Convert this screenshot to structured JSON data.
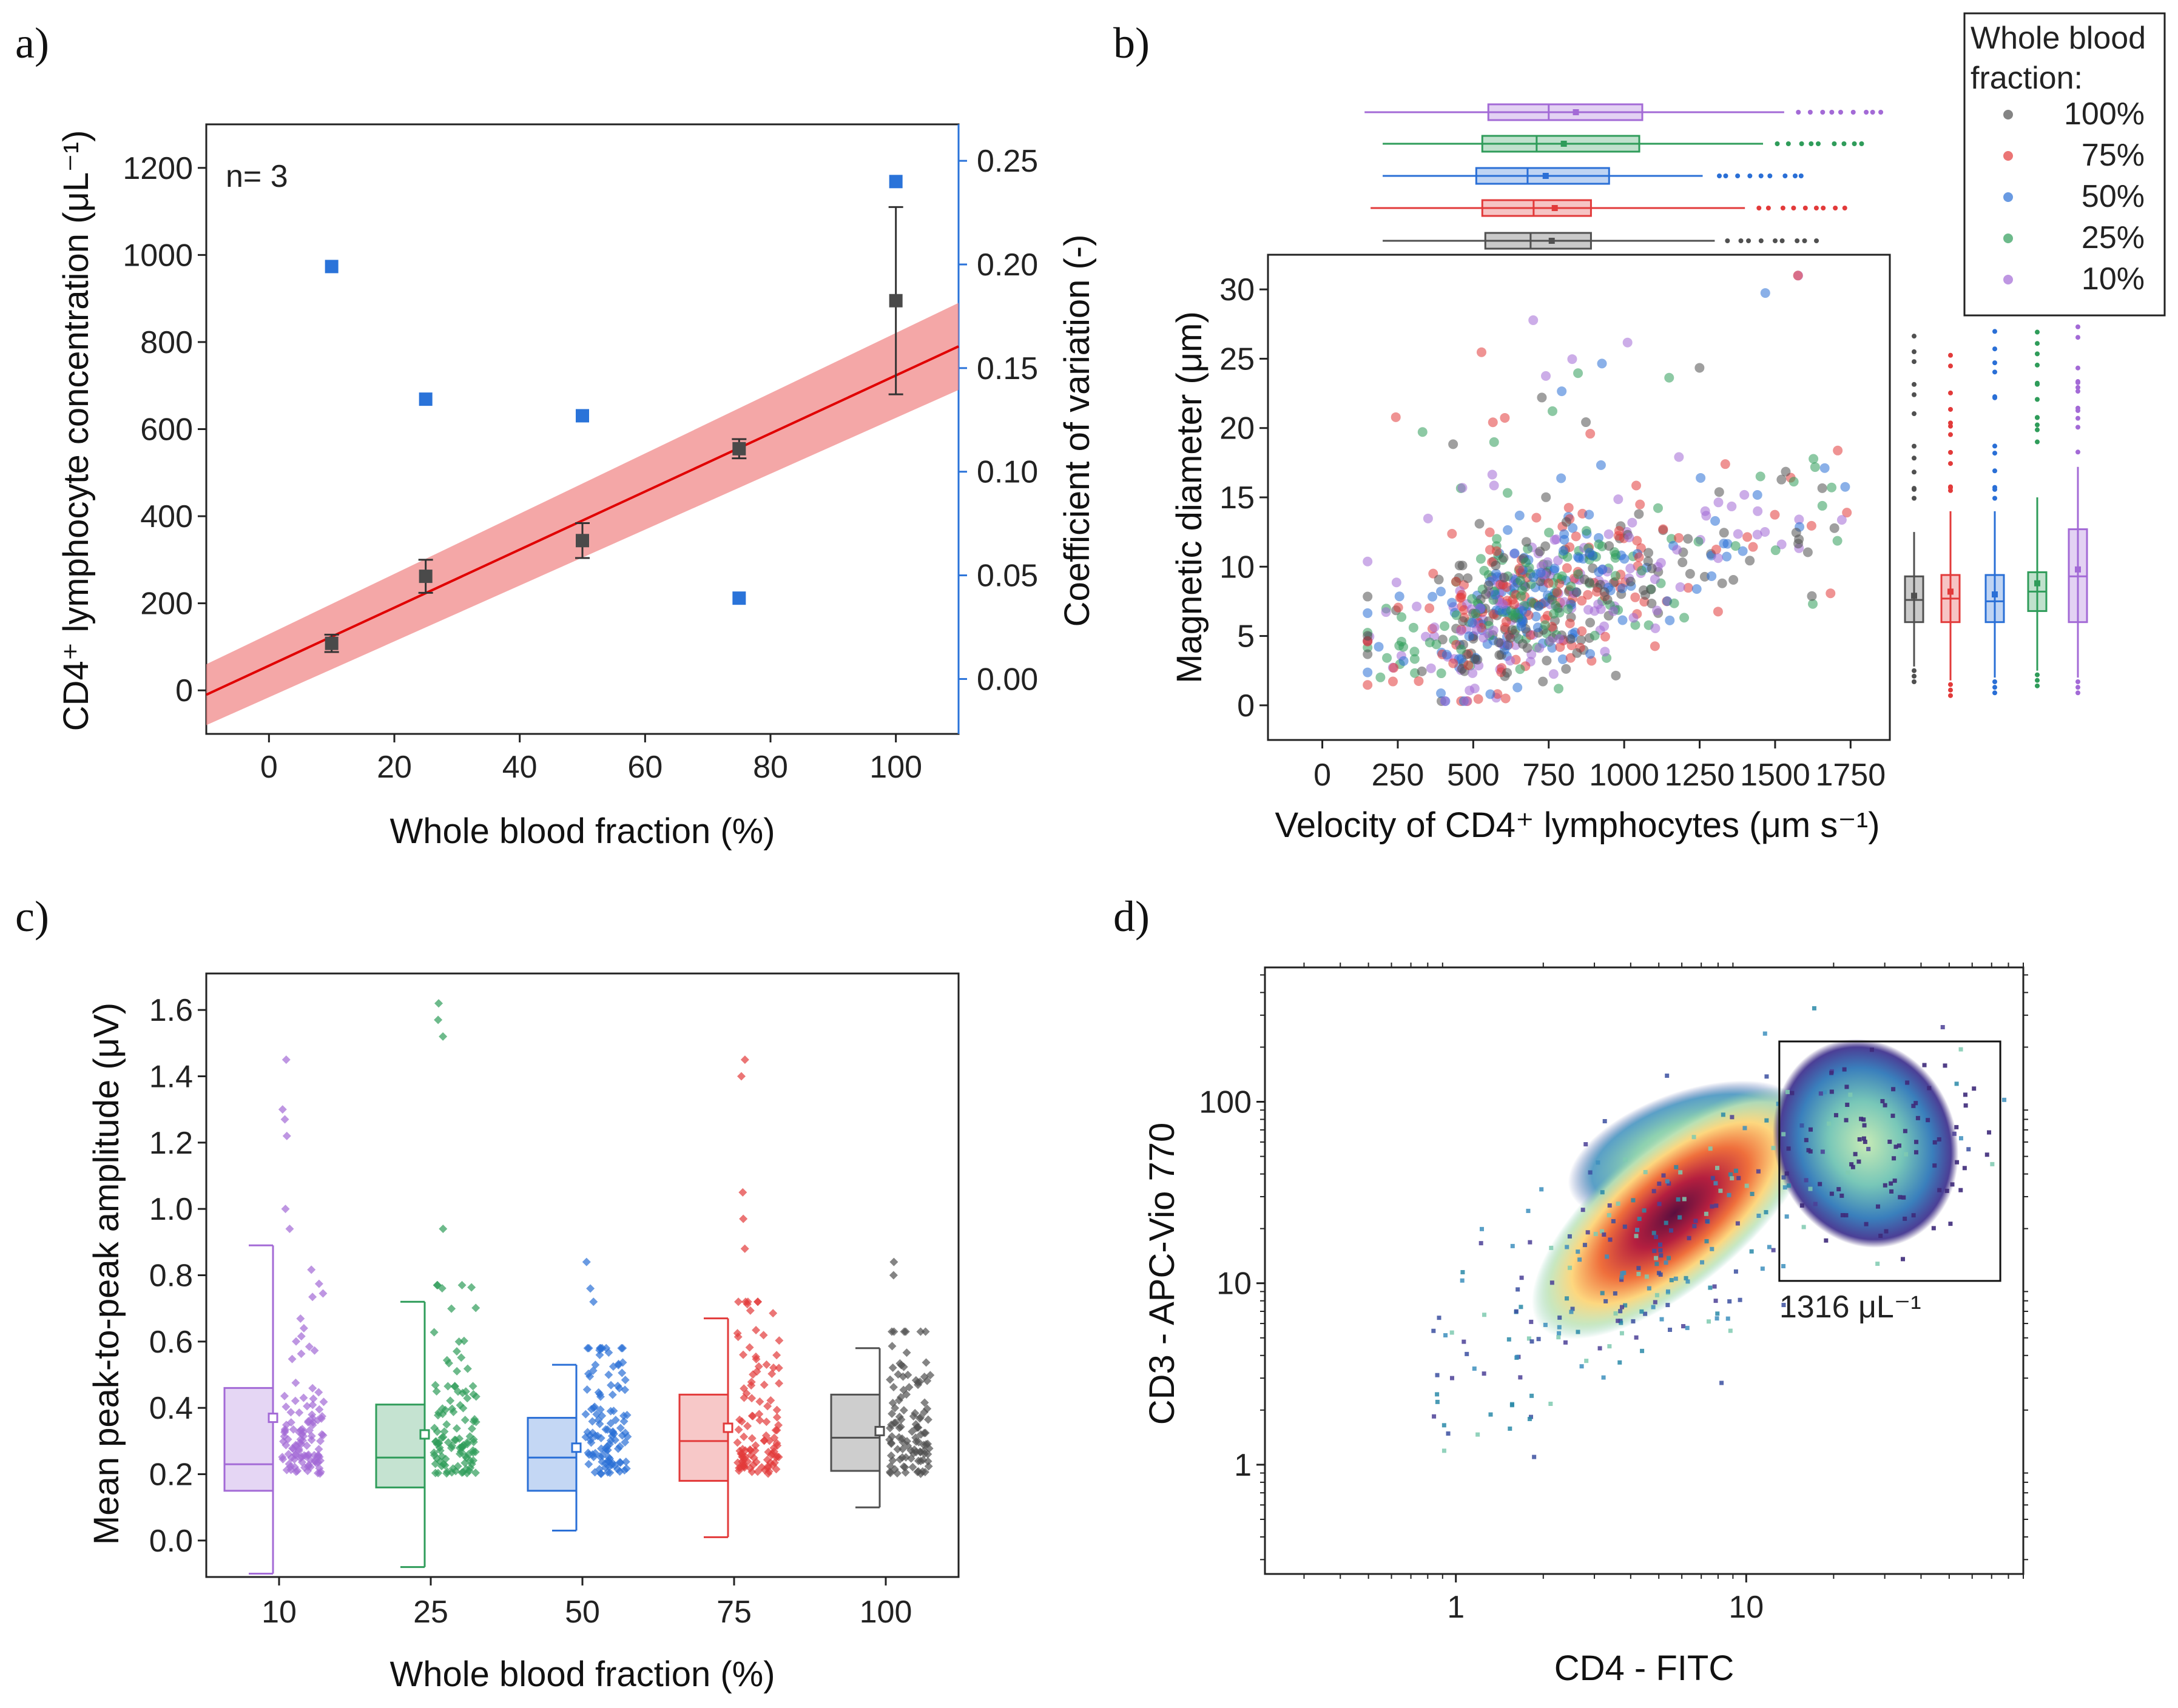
{
  "panels": {
    "a": "a)",
    "b": "b)",
    "c": "c)",
    "d": "d)"
  },
  "colors": {
    "c100": "#505050",
    "c75": "#e23a3a",
    "c50": "#2a6fd6",
    "c25": "#2f9c5a",
    "c10": "#a36ad6",
    "fit": "#e00000",
    "band": "#f08a8a",
    "cv": "#2a73d9"
  },
  "chart_data": [
    {
      "id": "a",
      "type": "scatter",
      "annotation": "n= 3",
      "xlabel": "Whole blood fraction (%)",
      "ylabel_left": "CD4⁺ lymphocyte concentration (μL⁻¹)",
      "ylabel_right": "Coefficient of variation (-)",
      "xlim": [
        -10,
        110
      ],
      "ylim_left": [
        -100,
        1300
      ],
      "ylim_right": [
        -0.0265,
        0.2676
      ],
      "xticks": [
        "0",
        "20",
        "40",
        "60",
        "80",
        "100"
      ],
      "yticks_left": [
        "0",
        "200",
        "400",
        "600",
        "800",
        "1000",
        "1200"
      ],
      "yticks_right": [
        "0.00",
        "0.05",
        "0.10",
        "0.15",
        "0.20",
        "0.25"
      ],
      "concentration": {
        "x": [
          10,
          25,
          50,
          75,
          100
        ],
        "y": [
          108,
          262,
          344,
          555,
          895
        ],
        "err": [
          20,
          38,
          40,
          22,
          215
        ]
      },
      "cv": {
        "x": [
          10,
          25,
          50,
          75,
          100
        ],
        "y": [
          0.199,
          0.135,
          0.127,
          0.039,
          0.24
        ]
      },
      "fit": {
        "x": [
          -10,
          110
        ],
        "y": [
          -10,
          790
        ],
        "band_lower": [
          -80,
          690
        ],
        "band_upper": [
          60,
          890
        ]
      }
    },
    {
      "id": "b",
      "type": "scatter",
      "xlabel": "Velocity of CD4⁺ lymphocytes (μm s⁻¹)",
      "ylabel": "Magnetic diameter (μm)",
      "xlim": [
        -180,
        1880
      ],
      "ylim": [
        -2.5,
        32.5
      ],
      "xticks": [
        "0",
        "250",
        "500",
        "750",
        "1000",
        "1250",
        "1500",
        "1750"
      ],
      "yticks": [
        "0",
        "5",
        "10",
        "15",
        "20",
        "25",
        "30"
      ],
      "legend_title": "Whole blood fraction:",
      "legend": [
        "100%",
        "75%",
        "50%",
        "25%",
        "10%"
      ],
      "top_boxes": [
        {
          "name": "10%",
          "min": 140,
          "q1": 550,
          "median": 750,
          "mean": 840,
          "q3": 1060,
          "max": 1530
        },
        {
          "name": "25%",
          "min": 200,
          "q1": 530,
          "median": 710,
          "mean": 800,
          "q3": 1050,
          "max": 1460
        },
        {
          "name": "50%",
          "min": 200,
          "q1": 510,
          "median": 680,
          "mean": 740,
          "q3": 950,
          "max": 1260
        },
        {
          "name": "75%",
          "min": 160,
          "q1": 530,
          "median": 700,
          "mean": 770,
          "q3": 890,
          "max": 1400
        },
        {
          "name": "100%",
          "min": 200,
          "q1": 540,
          "median": 690,
          "mean": 760,
          "q3": 890,
          "max": 1300
        }
      ],
      "right_boxes": [
        {
          "name": "100%",
          "min": 2.8,
          "q1": 6.0,
          "median": 7.6,
          "mean": 7.9,
          "q3": 9.3,
          "max": 12.5
        },
        {
          "name": "75%",
          "min": 1.8,
          "q1": 6.0,
          "median": 7.7,
          "mean": 8.2,
          "q3": 9.4,
          "max": 14.0
        },
        {
          "name": "50%",
          "min": 2.0,
          "q1": 6.0,
          "median": 7.5,
          "mean": 8.0,
          "q3": 9.4,
          "max": 14.0
        },
        {
          "name": "25%",
          "min": 2.5,
          "q1": 6.8,
          "median": 8.2,
          "mean": 8.8,
          "q3": 9.6,
          "max": 15.0
        },
        {
          "name": "10%",
          "min": 2.0,
          "q1": 6.0,
          "median": 9.3,
          "mean": 9.8,
          "q3": 12.7,
          "max": 17.2
        }
      ]
    },
    {
      "id": "c",
      "type": "box",
      "xlabel": "Whole blood fraction (%)",
      "ylabel": "Mean peak-to-peak amplitude (μV)",
      "ylim": [
        -0.11,
        1.71
      ],
      "categories": [
        "10",
        "25",
        "50",
        "75",
        "100"
      ],
      "yticks": [
        "0.0",
        "0.2",
        "0.4",
        "0.6",
        "0.8",
        "1.0",
        "1.2",
        "1.4",
        "1.6"
      ],
      "boxes": [
        {
          "name": "10",
          "min": -0.1,
          "q1": 0.15,
          "median": 0.23,
          "mean": 0.37,
          "q3": 0.46,
          "max": 0.89,
          "outliers": [
            1.0,
            1.22,
            1.27,
            1.3,
            1.45
          ]
        },
        {
          "name": "25",
          "min": -0.08,
          "q1": 0.16,
          "median": 0.25,
          "mean": 0.32,
          "q3": 0.41,
          "max": 0.72,
          "outliers": [
            0.94,
            1.52,
            1.57,
            1.62
          ]
        },
        {
          "name": "50",
          "min": 0.03,
          "q1": 0.15,
          "median": 0.25,
          "mean": 0.28,
          "q3": 0.37,
          "max": 0.53,
          "outliers": [
            0.72,
            0.76,
            0.84
          ]
        },
        {
          "name": "75",
          "min": 0.01,
          "q1": 0.18,
          "median": 0.3,
          "mean": 0.34,
          "q3": 0.44,
          "max": 0.67,
          "outliers": [
            0.88,
            0.97,
            1.05,
            1.4,
            1.45
          ]
        },
        {
          "name": "100",
          "min": 0.1,
          "q1": 0.21,
          "median": 0.31,
          "mean": 0.33,
          "q3": 0.44,
          "max": 0.58,
          "outliers": [
            0.8,
            0.84
          ]
        }
      ]
    },
    {
      "id": "d",
      "type": "heatmap",
      "xlabel": "CD4 - FITC",
      "ylabel": "CD3 - APC-Vio 770",
      "xscale": "log",
      "yscale": "log",
      "xlim": [
        0.22,
        90
      ],
      "ylim": [
        0.25,
        550
      ],
      "xticks": [
        "1",
        "10"
      ],
      "yticks": [
        "1",
        "10",
        "100"
      ],
      "gate_label": "1316 μL⁻¹",
      "gate": {
        "x": [
          13,
          75
        ],
        "y": [
          10.3,
          215
        ]
      }
    }
  ]
}
